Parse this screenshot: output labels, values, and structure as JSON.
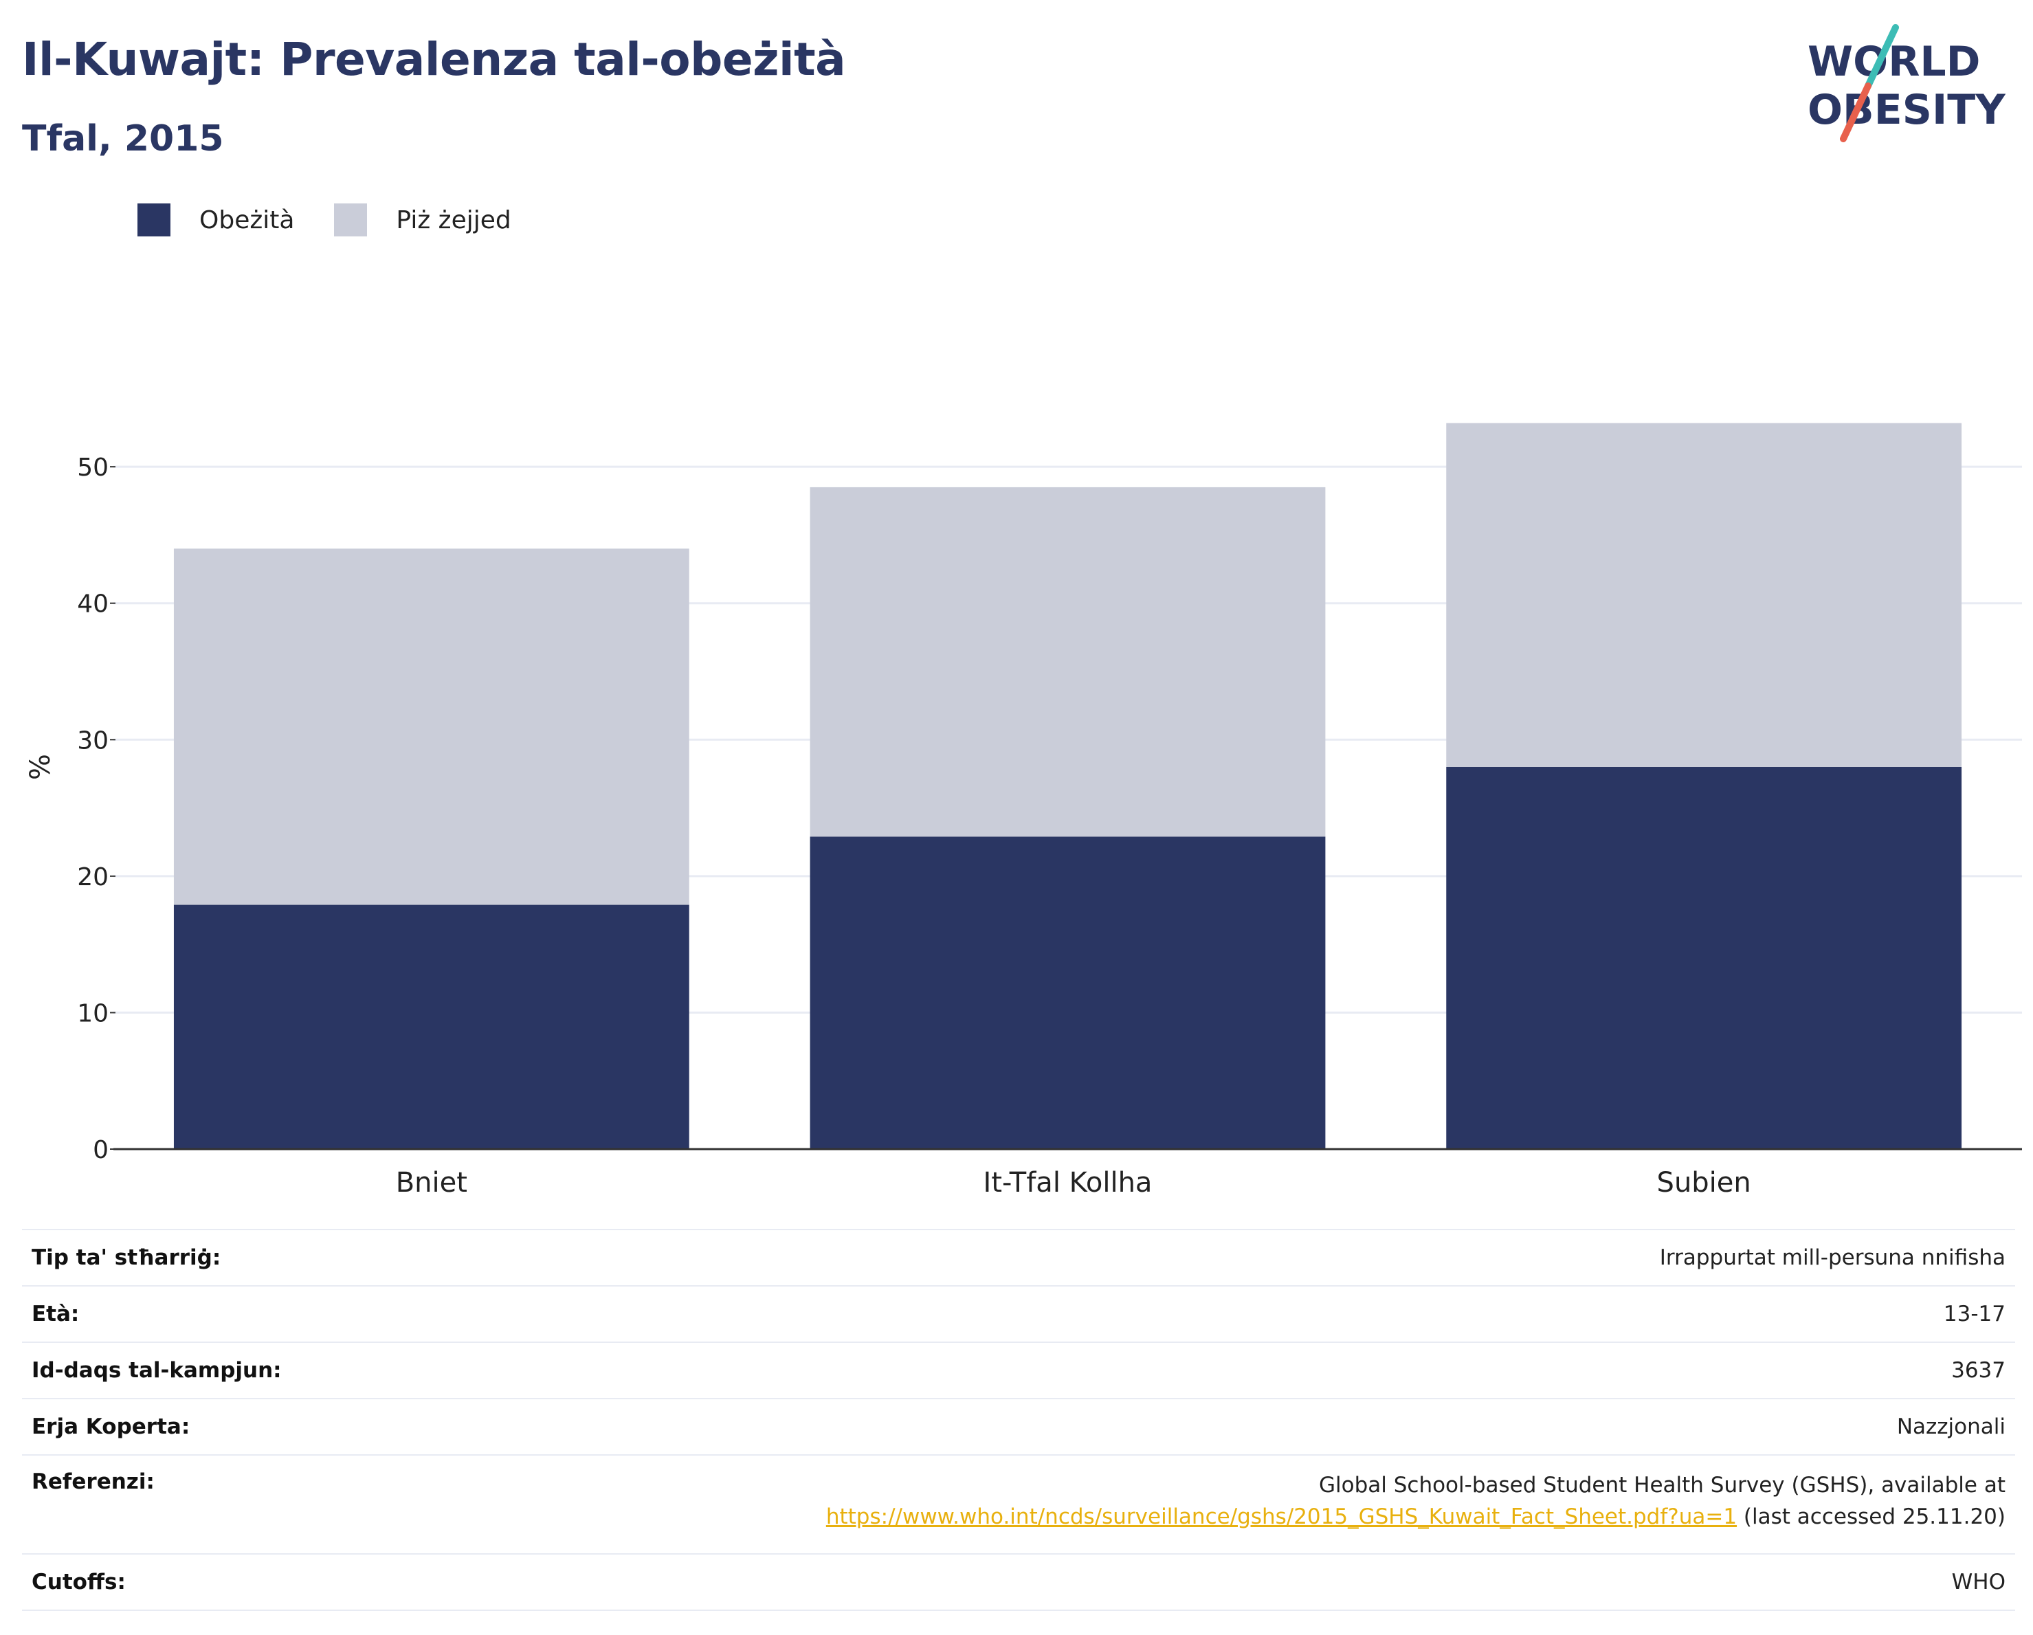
{
  "header": {
    "title": "Il-Kuwajt: Prevalenza tal-obeżità",
    "subtitle": "Tfal, 2015"
  },
  "logo": {
    "line1": "WORLD",
    "line2": "OBESITY",
    "slash_colors": [
      "#3cbcb5",
      "#e8604c"
    ]
  },
  "colors": {
    "obesity": "#2a3663",
    "overweight": "#cacdd9",
    "grid": "#e8ebf3",
    "axis": "#333333",
    "link": "#e8b00e"
  },
  "chart_data": {
    "type": "bar",
    "stacked": true,
    "categories": [
      "Bniet",
      "It-Tfal Kollha",
      "Subien"
    ],
    "series": [
      {
        "name": "Obeżità",
        "values": [
          17.9,
          22.9,
          28.0
        ]
      },
      {
        "name": "Piż żejjed",
        "values": [
          26.1,
          25.6,
          25.2
        ]
      }
    ],
    "ylabel": "%",
    "xlabel": "",
    "ylim": [
      0,
      56
    ],
    "yticks": [
      0,
      10,
      20,
      30,
      40,
      50
    ],
    "grid": true,
    "legend_position": "top-left"
  },
  "meta": {
    "rows": [
      {
        "label": "Tip ta' stħarriġ:",
        "value": "Irrappurtat mill-persuna nnifisha"
      },
      {
        "label": "Età:",
        "value": "13-17"
      },
      {
        "label": "Id-daqs tal-kampjun:",
        "value": "3637"
      },
      {
        "label": "Erja Koperta:",
        "value": "Nazzjonali"
      }
    ],
    "reference": {
      "label": "Referenzi:",
      "line1": "Global School-based Student Health Survey (GSHS), available at",
      "link": "https://www.who.int/ncds/surveillance/gshs/2015_GSHS_Kuwait_Fact_Sheet.pdf?ua=1",
      "suffix": " (last accessed 25.11.20)"
    },
    "cutoffs": {
      "label": "Cutoffs:",
      "value": "WHO"
    }
  }
}
